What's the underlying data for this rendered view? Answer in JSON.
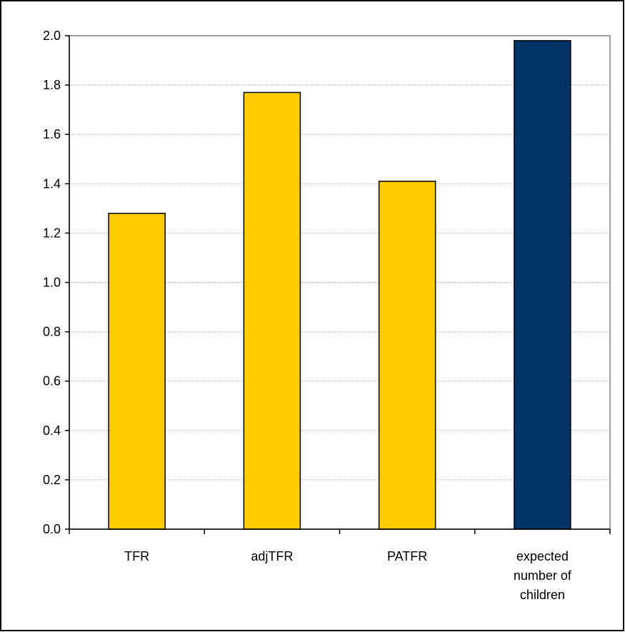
{
  "chart_data": {
    "type": "bar",
    "categories": [
      "TFR",
      "adjTFR",
      "PATFR",
      "expected number of children"
    ],
    "category_label_lines": [
      [
        "TFR"
      ],
      [
        "adjTFR"
      ],
      [
        "PATFR"
      ],
      [
        "expected",
        "number of",
        "children"
      ]
    ],
    "values": [
      1.28,
      1.77,
      1.41,
      1.98
    ],
    "bar_colors": [
      "#FFCC00",
      "#FFCC00",
      "#FFCC00",
      "#003366"
    ],
    "title": "",
    "xlabel": "",
    "ylabel": "",
    "ylim": [
      0,
      2.0
    ],
    "yticks": [
      0.0,
      0.2,
      0.4,
      0.6,
      0.8,
      1.0,
      1.2,
      1.4,
      1.6,
      1.8,
      2.0
    ],
    "ytick_labels": [
      "0.0",
      "0.2",
      "0.4",
      "0.6",
      "0.8",
      "1.0",
      "1.2",
      "1.4",
      "1.6",
      "1.8",
      "2.0"
    ],
    "grid": true,
    "legend": "none"
  }
}
